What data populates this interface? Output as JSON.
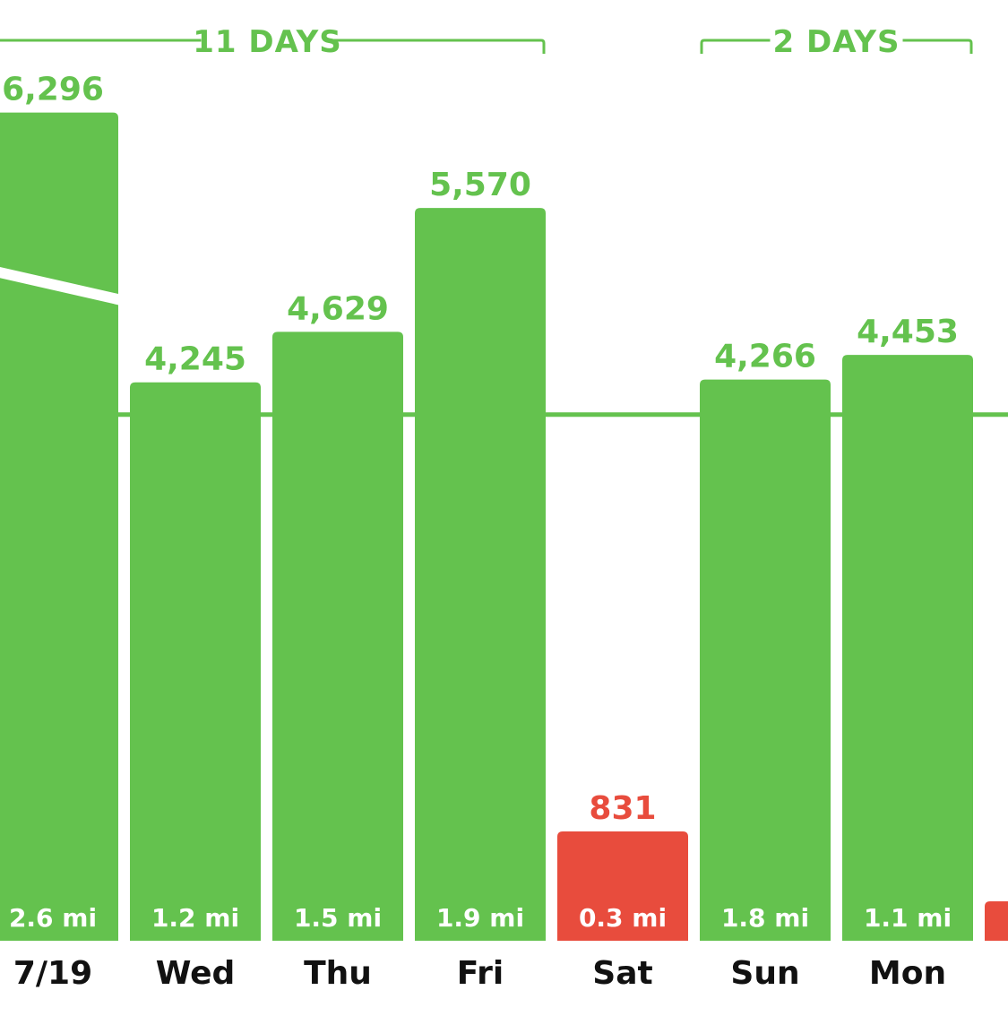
{
  "colors": {
    "goal_met": "#64c24e",
    "goal_missed": "#e84c3d",
    "goal_line": "#64c24e",
    "background": "#ffffff",
    "day_text": "#111111"
  },
  "chart_data": {
    "type": "bar",
    "categories": [
      "7/19",
      "Wed",
      "Thu",
      "Fri",
      "Sat",
      "Sun",
      "Mon",
      ""
    ],
    "values": [
      6296,
      4245,
      4629,
      5570,
      831,
      4266,
      4453,
      300
    ],
    "value_labels": [
      "6,296",
      "4,245",
      "4,629",
      "5,570",
      "831",
      "4,266",
      "4,453",
      ""
    ],
    "distance_labels": [
      "2.6 mi",
      "1.2 mi",
      "1.5 mi",
      "1.9 mi",
      "0.3 mi",
      "1.8 mi",
      "1.1 mi",
      ""
    ],
    "goal_met": [
      true,
      true,
      true,
      true,
      false,
      true,
      true,
      false
    ],
    "goal_value": 4000,
    "ylim": [
      0,
      6500
    ],
    "streaks": [
      {
        "label": "11 DAYS",
        "first": 0,
        "last": 3
      },
      {
        "label": "2 DAYS",
        "first": 5,
        "last": 6
      }
    ]
  }
}
